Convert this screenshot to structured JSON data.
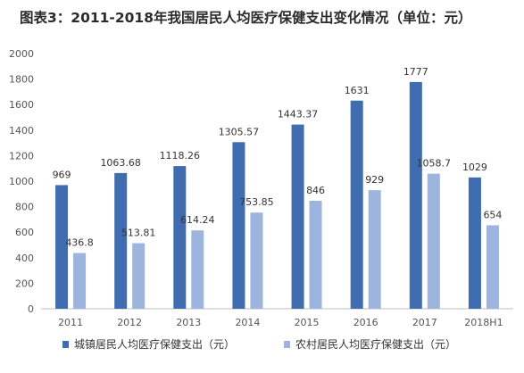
{
  "chart_data": {
    "type": "bar",
    "title": "图表3：2011-2018年我国居民人均医疗保健支出变化情况（单位：元）",
    "categories": [
      "2011",
      "2012",
      "2013",
      "2014",
      "2015",
      "2016",
      "2017",
      "2018H1"
    ],
    "series": [
      {
        "name": "城镇居民人均医疗保健支出（元）",
        "values": [
          969,
          1063.68,
          1118.26,
          1305.57,
          1443.37,
          1631,
          1777,
          1029
        ],
        "labels": [
          "969",
          "1063.68",
          "1118.26",
          "1305.57",
          "1443.37",
          "1631",
          "1777",
          "1029"
        ],
        "color": "#3f6db0"
      },
      {
        "name": "农村居民人均医疗保健支出（元）",
        "values": [
          436.8,
          513.81,
          614.24,
          753.85,
          846,
          929,
          1058.7,
          654
        ],
        "labels": [
          "436.8",
          "513.81",
          "614.24",
          "753.85",
          "846",
          "929",
          "1058.7",
          "654"
        ],
        "color": "#9db5de"
      }
    ],
    "ylim": [
      0,
      2000
    ],
    "yticks": [
      "0",
      "200",
      "400",
      "600",
      "800",
      "1000",
      "1200",
      "1400",
      "1600",
      "1800",
      "2000"
    ],
    "grid": false,
    "legend_position": "bottom"
  }
}
